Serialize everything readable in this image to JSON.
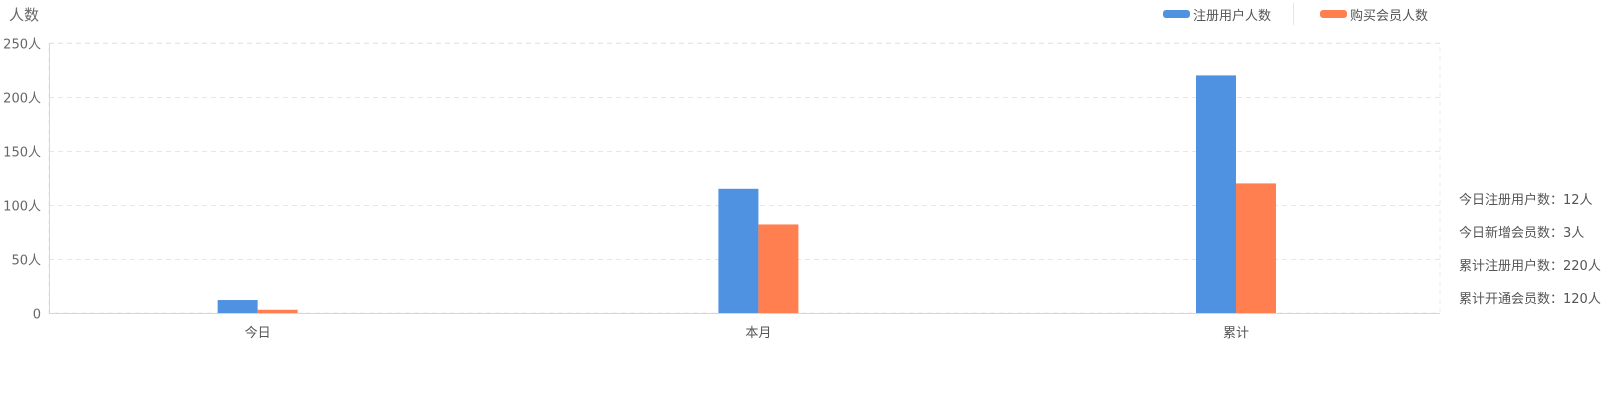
{
  "chart_data": {
    "type": "bar",
    "y_unit_label": "人数",
    "categories": [
      "今日",
      "本月",
      "累计"
    ],
    "series": [
      {
        "name": "注册用户人数",
        "color": "#4f92e1",
        "values": [
          12,
          115,
          220
        ]
      },
      {
        "name": "购买会员人数",
        "color": "#ff7f50",
        "values": [
          3,
          82,
          120
        ]
      }
    ],
    "ylim": [
      0,
      250
    ],
    "y_ticks": [
      {
        "value": 0,
        "label": "0"
      },
      {
        "value": 50,
        "label": "50人"
      },
      {
        "value": 100,
        "label": "100人"
      },
      {
        "value": 150,
        "label": "150人"
      },
      {
        "value": 200,
        "label": "200人"
      },
      {
        "value": 250,
        "label": "250人"
      }
    ],
    "grid": true,
    "legend_position": "top-right"
  },
  "stats": [
    "今日注册用户数：12人",
    "今日新增会员数：3人",
    "累计注册用户数：220人",
    "累计开通会员数：120人"
  ]
}
